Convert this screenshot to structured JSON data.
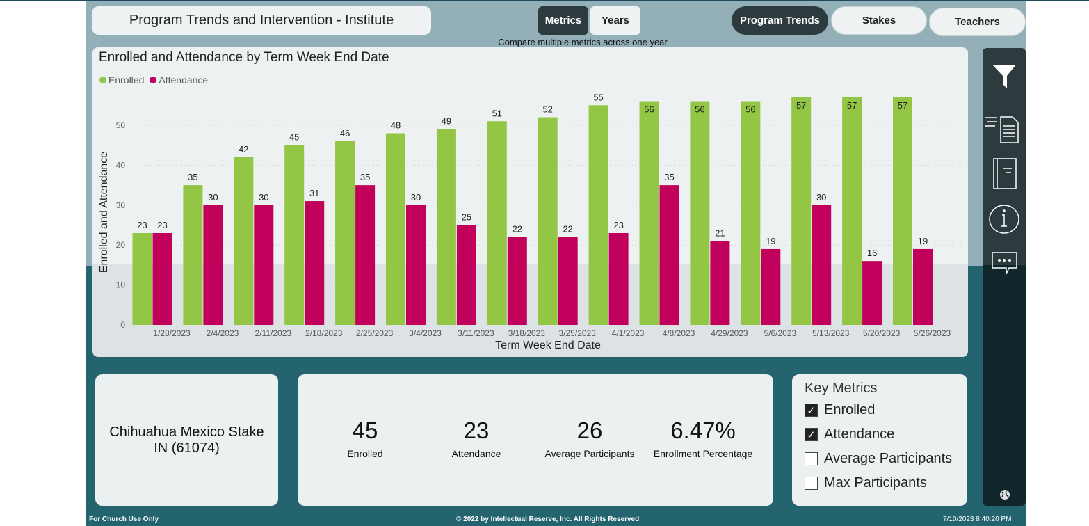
{
  "header": {
    "title": "Program Trends and Intervention - Institute",
    "toggle": [
      "Metrics",
      "Years"
    ],
    "toggle_active": "Metrics",
    "subtitle": "Compare multiple metrics across one year",
    "nav": [
      "Program Trends",
      "Stakes",
      "Teachers"
    ],
    "nav_active": "Program Trends"
  },
  "chart_data": {
    "type": "bar",
    "title": "Enrolled and Attendance by Term Week End Date",
    "xlabel": "Term Week End Date",
    "ylabel": "Enrolled and Attendance",
    "ylim": [
      0,
      57
    ],
    "yticks": [
      0,
      10,
      20,
      30,
      40,
      50
    ],
    "grid": true,
    "legend": "top-left",
    "categories": [
      "1/28/2023",
      "2/4/2023",
      "2/11/2023",
      "2/18/2023",
      "2/25/2023",
      "3/4/2023",
      "3/11/2023",
      "3/18/2023",
      "3/25/2023",
      "4/1/2023",
      "4/8/2023",
      "4/29/2023",
      "5/6/2023",
      "5/13/2023",
      "5/20/2023",
      "5/26/2023"
    ],
    "series": [
      {
        "name": "Enrolled",
        "color": "#93c644",
        "values": [
          23,
          35,
          42,
          45,
          46,
          48,
          49,
          51,
          52,
          55,
          56,
          56,
          56,
          57,
          57,
          57
        ]
      },
      {
        "name": "Attendance",
        "color": "#c0005a",
        "values": [
          23,
          30,
          30,
          31,
          35,
          30,
          25,
          22,
          22,
          23,
          35,
          21,
          19,
          30,
          16,
          19
        ]
      }
    ]
  },
  "location": {
    "line1": "Chihuahua Mexico Stake",
    "line2": "IN (61074)"
  },
  "kpis": [
    {
      "value": "45",
      "label": "Enrolled"
    },
    {
      "value": "23",
      "label": "Attendance"
    },
    {
      "value": "26",
      "label": "Average Participants"
    },
    {
      "value": "6.47%",
      "label": "Enrollment Percentage"
    }
  ],
  "key_metrics": {
    "title": "Key Metrics",
    "items": [
      {
        "label": "Enrolled",
        "checked": true
      },
      {
        "label": "Attendance",
        "checked": true
      },
      {
        "label": "Average Participants",
        "checked": false
      },
      {
        "label": "Max Participants",
        "checked": false
      }
    ]
  },
  "rail_icons": [
    "filter-icon",
    "report-icon",
    "notebook-icon",
    "info-icon",
    "comment-icon",
    "globe-icon"
  ],
  "footer": {
    "left": "For Church Use Only",
    "center": "© 2022 by Intellectual Reserve, Inc. All Rights Reserved",
    "right": "7/10/2023 8:40:20 PM"
  }
}
